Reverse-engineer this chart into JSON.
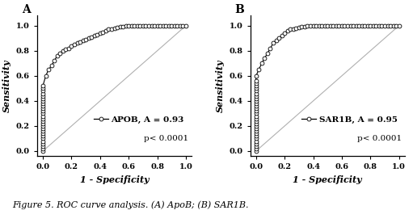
{
  "panel_A": {
    "label": "A",
    "curve_label": "APOB, A = 0.93",
    "p_value": "p< 0.0001",
    "roc_x": [
      0.0,
      0.0,
      0.0,
      0.0,
      0.0,
      0.0,
      0.0,
      0.0,
      0.0,
      0.0,
      0.0,
      0.0,
      0.0,
      0.0,
      0.0,
      0.0,
      0.0,
      0.0,
      0.0,
      0.0,
      0.0,
      0.0,
      0.0,
      0.0,
      0.0,
      0.0,
      0.0,
      0.02,
      0.04,
      0.06,
      0.08,
      0.1,
      0.12,
      0.14,
      0.16,
      0.18,
      0.2,
      0.22,
      0.24,
      0.26,
      0.28,
      0.3,
      0.32,
      0.34,
      0.36,
      0.38,
      0.4,
      0.42,
      0.44,
      0.46,
      0.48,
      0.5,
      0.52,
      0.54,
      0.56,
      0.58,
      0.6,
      0.62,
      0.64,
      0.66,
      0.68,
      0.7,
      0.72,
      0.74,
      0.76,
      0.78,
      0.8,
      0.82,
      0.84,
      0.86,
      0.88,
      0.9,
      0.92,
      0.94,
      0.96,
      0.98,
      1.0
    ],
    "roc_y": [
      0.0,
      0.02,
      0.04,
      0.06,
      0.08,
      0.1,
      0.12,
      0.14,
      0.16,
      0.18,
      0.2,
      0.22,
      0.24,
      0.26,
      0.28,
      0.3,
      0.32,
      0.34,
      0.36,
      0.38,
      0.4,
      0.42,
      0.44,
      0.46,
      0.48,
      0.5,
      0.52,
      0.6,
      0.65,
      0.68,
      0.72,
      0.76,
      0.78,
      0.8,
      0.81,
      0.82,
      0.84,
      0.85,
      0.86,
      0.87,
      0.88,
      0.89,
      0.9,
      0.91,
      0.92,
      0.93,
      0.94,
      0.95,
      0.96,
      0.97,
      0.975,
      0.98,
      0.985,
      0.99,
      0.99,
      1.0,
      1.0,
      1.0,
      1.0,
      1.0,
      1.0,
      1.0,
      1.0,
      1.0,
      1.0,
      1.0,
      1.0,
      1.0,
      1.0,
      1.0,
      1.0,
      1.0,
      1.0,
      1.0,
      1.0,
      1.0,
      1.0
    ]
  },
  "panel_B": {
    "label": "B",
    "curve_label": "SAR1B, A = 0.95",
    "p_value": "p< 0.0001",
    "roc_x": [
      0.0,
      0.0,
      0.0,
      0.0,
      0.0,
      0.0,
      0.0,
      0.0,
      0.0,
      0.0,
      0.0,
      0.0,
      0.0,
      0.0,
      0.0,
      0.0,
      0.0,
      0.0,
      0.0,
      0.0,
      0.0,
      0.0,
      0.0,
      0.0,
      0.0,
      0.0,
      0.0,
      0.0,
      0.0,
      0.0,
      0.02,
      0.04,
      0.06,
      0.08,
      0.1,
      0.12,
      0.14,
      0.16,
      0.18,
      0.2,
      0.22,
      0.24,
      0.26,
      0.28,
      0.3,
      0.32,
      0.34,
      0.36,
      0.38,
      0.4,
      0.42,
      0.44,
      0.46,
      0.48,
      0.5,
      0.52,
      0.54,
      0.56,
      0.58,
      0.6,
      0.62,
      0.64,
      0.66,
      0.68,
      0.7,
      0.72,
      0.74,
      0.76,
      0.78,
      0.8,
      0.82,
      0.84,
      0.86,
      0.88,
      0.9,
      0.92,
      0.94,
      0.96,
      0.98,
      1.0
    ],
    "roc_y": [
      0.0,
      0.02,
      0.04,
      0.06,
      0.08,
      0.1,
      0.12,
      0.14,
      0.16,
      0.18,
      0.2,
      0.22,
      0.24,
      0.26,
      0.28,
      0.3,
      0.32,
      0.34,
      0.36,
      0.38,
      0.4,
      0.42,
      0.44,
      0.46,
      0.48,
      0.5,
      0.52,
      0.54,
      0.56,
      0.6,
      0.65,
      0.7,
      0.74,
      0.78,
      0.82,
      0.86,
      0.88,
      0.9,
      0.92,
      0.94,
      0.96,
      0.97,
      0.975,
      0.98,
      0.985,
      0.99,
      0.99,
      1.0,
      1.0,
      1.0,
      1.0,
      1.0,
      1.0,
      1.0,
      1.0,
      1.0,
      1.0,
      1.0,
      1.0,
      1.0,
      1.0,
      1.0,
      1.0,
      1.0,
      1.0,
      1.0,
      1.0,
      1.0,
      1.0,
      1.0,
      1.0,
      1.0,
      1.0,
      1.0,
      1.0,
      1.0,
      1.0,
      1.0,
      1.0,
      1.0
    ]
  },
  "xlabel": "1 - Specificity",
  "ylabel": "Sensitivity",
  "xticks": [
    0.0,
    0.2,
    0.4,
    0.6,
    0.8,
    1.0
  ],
  "yticks": [
    0.0,
    0.2,
    0.4,
    0.6,
    0.8,
    1.0
  ],
  "figure_caption": "Figure 5. ROC curve analysis. (A) ApoB; (B) SAR1B.",
  "line_color": "black",
  "marker": "o",
  "markersize": 3.5,
  "reference_line_color": "#b0b0b0",
  "background_color": "#ffffff",
  "font_size_tick": 7,
  "font_size_label": 8,
  "font_size_legend": 7.5,
  "font_size_panel": 10,
  "font_size_caption": 8
}
